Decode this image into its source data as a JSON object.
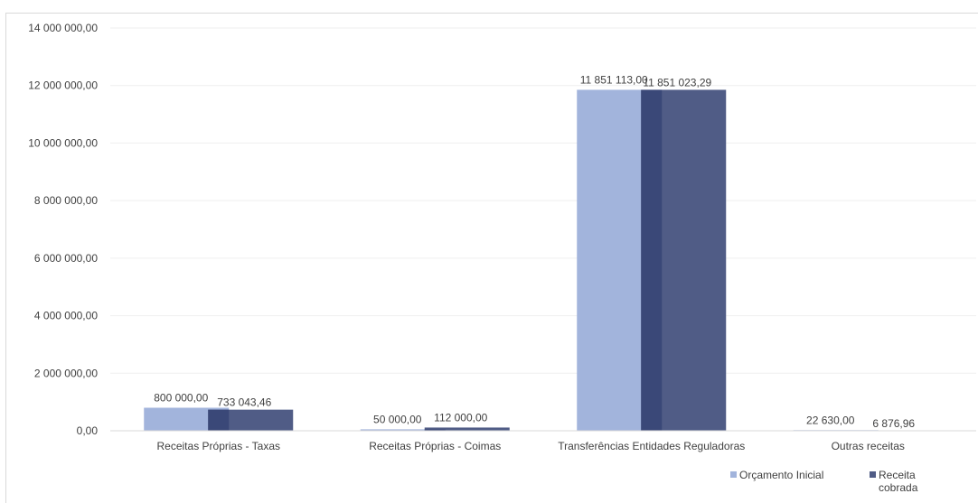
{
  "chart_data": {
    "type": "bar",
    "categories": [
      "Receitas  Próprias - Taxas",
      "Receitas  Próprias - Coimas",
      "Transferências  Entidades  Reguladoras",
      "Outras receitas"
    ],
    "series": [
      {
        "name": "Orçamento Inicial",
        "values": [
          800000.0,
          50000.0,
          11851113.0,
          22630.0
        ],
        "labels": [
          "800 000,00",
          "50 000,00",
          "11 851 113,00",
          "22 630,00"
        ],
        "color": "#a2b4dc"
      },
      {
        "name": "Receita cobrada",
        "values": [
          733043.46,
          112000.0,
          11851023.29,
          6876.96
        ],
        "labels": [
          "733 043,46",
          "112 000,00",
          "11 851 023,29",
          "6 876,96"
        ],
        "color": "#505c86"
      }
    ],
    "overlap_color": "#3a4878",
    "ylim": [
      0,
      14000000
    ],
    "yticks": [
      0,
      2000000,
      4000000,
      6000000,
      8000000,
      10000000,
      12000000,
      14000000
    ],
    "ytick_labels": [
      "0,00",
      "2 000 000,00",
      "4 000 000,00",
      "6 000 000,00",
      "8 000 000,00",
      "10 000 000,00",
      "12 000 000,00",
      "14 000 000,00"
    ],
    "grid": true,
    "legend": {
      "position": "bottom-right",
      "entries": [
        {
          "line1": "Orçamento Inicial",
          "line2": ""
        },
        {
          "line1": "Receita",
          "line2": "cobrada"
        }
      ]
    },
    "title": "",
    "xlabel": "",
    "ylabel": ""
  }
}
